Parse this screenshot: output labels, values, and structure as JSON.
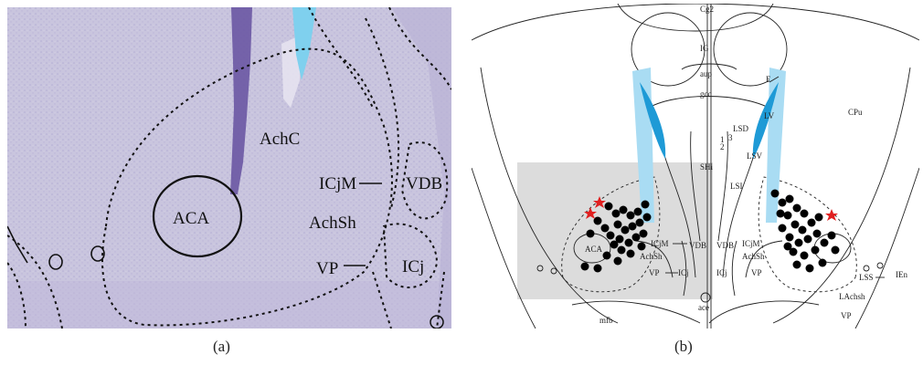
{
  "figure": {
    "caption_a": "(a)",
    "caption_b": "(b)"
  },
  "panel_a": {
    "labels": {
      "acbc": "AchC",
      "aca": "ACA",
      "icjm": "ICjM",
      "vdb": "VDB",
      "achsh": "AchSh",
      "vp": "VP",
      "icj": "ICj"
    },
    "colors": {
      "tissue": "#c7c3dc",
      "stain": "#6e5aa6",
      "cannula": "#7fd0ee"
    }
  },
  "panel_b": {
    "labels": {
      "cg2": "Cg2",
      "ig": "IG",
      "aup": "aup",
      "gcc": "gcc",
      "e": "E",
      "lv": "LV",
      "cpu": "CPu",
      "lsd": "LSD",
      "num1": "1",
      "num2": "2",
      "num3": "3",
      "lsv": "LSV",
      "shi": "SHi",
      "lsi": "LSI",
      "icjm_l": "ICjM",
      "aca": "ACA",
      "achsh_l": "AchSh",
      "vdb_l": "VDB",
      "vdb_r": "VDB",
      "icjm_r": "ICjM",
      "achsh_r": "AchSh",
      "vp_l": "VP",
      "icj_l": "ICj",
      "icj_r": "ICj",
      "vp_r": "VP",
      "lss": "LSS",
      "ien": "IEn",
      "lachsh": "LAchsh",
      "vp_b": "VP",
      "ace": "ace",
      "mfb": "mfb"
    },
    "colors": {
      "ventricle": "#1e9ad6",
      "cannula": "#a9dcf3",
      "highlight": "#dcdcdc",
      "marker_star": "#e02020",
      "marker_dot": "#000000"
    }
  }
}
